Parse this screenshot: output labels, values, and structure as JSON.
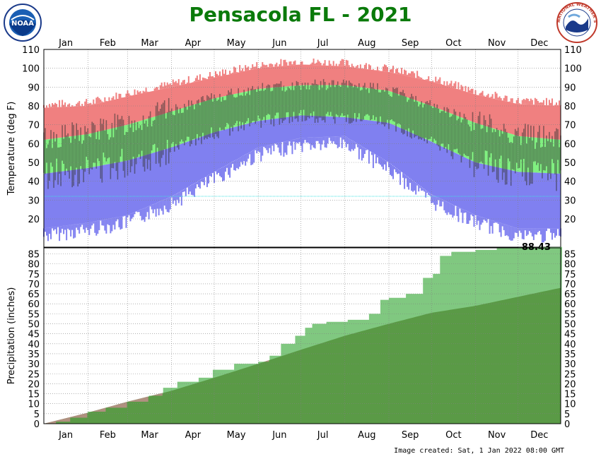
{
  "title": "Pensacola FL - 2021",
  "footer": "Image created: Sat, 1 Jan 2022 08:00 GMT",
  "logos": {
    "left": "NOAA",
    "right": "NATIONAL WEATHER SERVICE"
  },
  "colors": {
    "title": "#0a7a0a",
    "record_band": "#f08080",
    "normal_band": "#80f080",
    "record_low_band": "#8080f0",
    "actual_bars": "#333333",
    "precip_actual": "#80c880",
    "precip_normal": "#5a9a46",
    "precip_deficit": "#b09080",
    "freezing_line": "#40e0e0"
  },
  "chart_data": [
    {
      "type": "area",
      "name": "temperature",
      "ylabel": "Temperature (deg F)",
      "ylim": [
        5,
        110
      ],
      "yticks": [
        20,
        30,
        40,
        50,
        60,
        70,
        80,
        90,
        100,
        110
      ],
      "months": [
        "Jan",
        "Feb",
        "Mar",
        "Apr",
        "May",
        "Jun",
        "Jul",
        "Aug",
        "Sep",
        "Oct",
        "Nov",
        "Dec"
      ],
      "x_day_of_year": [
        1,
        32,
        60,
        91,
        121,
        152,
        182,
        213,
        244,
        274,
        305,
        335,
        365
      ],
      "normal_high": [
        62,
        65,
        70,
        77,
        84,
        89,
        91,
        91,
        88,
        80,
        71,
        64,
        62
      ],
      "normal_low": [
        44,
        47,
        51,
        58,
        66,
        72,
        75,
        74,
        71,
        61,
        50,
        45,
        44
      ],
      "record_high": [
        79,
        80,
        85,
        90,
        95,
        100,
        102,
        101,
        98,
        93,
        86,
        81,
        80
      ],
      "record_low": [
        15,
        18,
        22,
        32,
        45,
        58,
        63,
        64,
        50,
        33,
        22,
        15,
        15
      ],
      "freezing_line": 32
    },
    {
      "type": "area",
      "name": "precipitation",
      "ylabel": "Precipitation (inches)",
      "ylim": [
        0,
        88
      ],
      "yticks": [
        0,
        5,
        10,
        15,
        20,
        25,
        30,
        35,
        40,
        45,
        50,
        55,
        60,
        65,
        70,
        75,
        80,
        85
      ],
      "annotation": "88.43",
      "cumulative_actual_x": [
        1,
        10,
        20,
        32,
        45,
        60,
        75,
        85,
        95,
        110,
        120,
        135,
        148,
        152,
        160,
        168,
        178,
        185,
        190,
        200,
        215,
        225,
        230,
        238,
        244,
        256,
        268,
        275,
        280,
        288,
        305,
        320,
        335,
        350,
        365
      ],
      "cumulative_actual_y": [
        0,
        1,
        3,
        6,
        8,
        11,
        14,
        18,
        21,
        23,
        27,
        30,
        30,
        31,
        34,
        40,
        44,
        48,
        50,
        51,
        52,
        52,
        55,
        62,
        63,
        65,
        73,
        75,
        84,
        86,
        87,
        88,
        88.2,
        88.4,
        88.43
      ],
      "cumulative_normal_x": [
        1,
        32,
        60,
        91,
        121,
        152,
        182,
        213,
        244,
        274,
        305,
        335,
        365
      ],
      "cumulative_normal_y": [
        0,
        5.5,
        11,
        16.5,
        23,
        30,
        37,
        44,
        50,
        55.5,
        59,
        63.5,
        68
      ]
    }
  ]
}
